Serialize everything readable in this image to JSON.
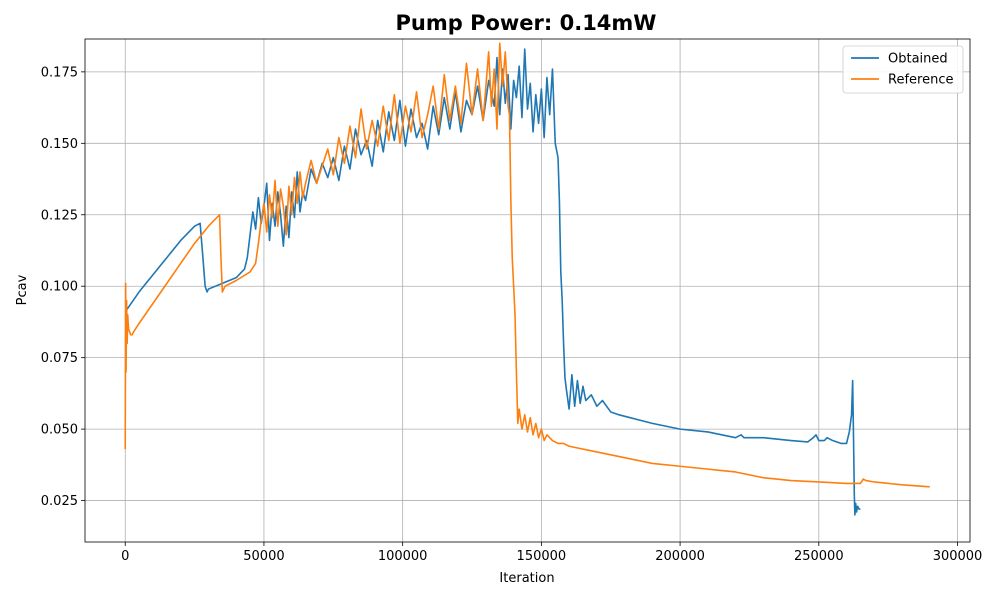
{
  "chart_data": {
    "type": "line",
    "title": "Pump Power: 0.14mW",
    "xlabel": "Iteration",
    "ylabel": "Pcav",
    "xlim": [
      -14500,
      304500
    ],
    "ylim": [
      0.0105,
      0.1865
    ],
    "xticks": [
      0,
      50000,
      100000,
      150000,
      200000,
      250000,
      300000
    ],
    "xtick_labels": [
      "0",
      "50000",
      "100000",
      "150000",
      "200000",
      "250000",
      "300000"
    ],
    "yticks": [
      0.025,
      0.05,
      0.075,
      0.1,
      0.125,
      0.15,
      0.175
    ],
    "ytick_labels": [
      "0.025",
      "0.050",
      "0.075",
      "0.100",
      "0.125",
      "0.150",
      "0.175"
    ],
    "grid": true,
    "legend_position": "upper right",
    "series": [
      {
        "name": "Obtained",
        "color": "#1f77b4",
        "x": [
          0,
          5000,
          10000,
          15000,
          20000,
          25000,
          27000,
          28000,
          28800,
          29500,
          30000,
          35000,
          40000,
          43000,
          44000,
          45000,
          46000,
          47000,
          48000,
          49000,
          50000,
          51000,
          52000,
          53000,
          54000,
          55000,
          56000,
          57000,
          58000,
          59000,
          60000,
          61000,
          62000,
          63000,
          64000,
          65000,
          67000,
          69000,
          71000,
          73000,
          75000,
          77000,
          79000,
          81000,
          83000,
          85000,
          87000,
          89000,
          91000,
          93000,
          95000,
          97000,
          99000,
          101000,
          103000,
          105000,
          107000,
          109000,
          111000,
          113000,
          115000,
          117000,
          119000,
          121000,
          123000,
          125000,
          127000,
          129000,
          131000,
          133000,
          134000,
          135000,
          136000,
          137000,
          138000,
          139000,
          140000,
          141000,
          142000,
          143000,
          144000,
          145000,
          146000,
          147000,
          148000,
          149000,
          150000,
          151000,
          152000,
          153000,
          154000,
          155000,
          156000,
          156500,
          157000,
          157500,
          158000,
          158500,
          159000,
          160000,
          161000,
          162000,
          163000,
          164000,
          165000,
          166000,
          168000,
          170000,
          172000,
          175000,
          178000,
          182000,
          190000,
          200000,
          210000,
          220000,
          222000,
          223000,
          230000,
          240000,
          246000,
          248000,
          249000,
          250000,
          252000,
          253000,
          255000,
          258000,
          260000,
          261000,
          261800,
          262200,
          262500,
          262800,
          263000,
          263300,
          263600,
          264000,
          264500,
          265000
        ],
        "y": [
          0.091,
          0.098,
          0.104,
          0.11,
          0.116,
          0.121,
          0.122,
          0.11,
          0.1,
          0.098,
          0.099,
          0.101,
          0.103,
          0.106,
          0.11,
          0.118,
          0.126,
          0.12,
          0.131,
          0.122,
          0.128,
          0.136,
          0.116,
          0.129,
          0.121,
          0.133,
          0.125,
          0.114,
          0.128,
          0.117,
          0.133,
          0.124,
          0.14,
          0.126,
          0.133,
          0.13,
          0.141,
          0.136,
          0.143,
          0.138,
          0.145,
          0.137,
          0.149,
          0.141,
          0.155,
          0.146,
          0.151,
          0.142,
          0.158,
          0.147,
          0.161,
          0.151,
          0.165,
          0.149,
          0.162,
          0.152,
          0.157,
          0.148,
          0.163,
          0.153,
          0.166,
          0.155,
          0.168,
          0.154,
          0.165,
          0.16,
          0.17,
          0.158,
          0.172,
          0.163,
          0.18,
          0.16,
          0.176,
          0.164,
          0.174,
          0.155,
          0.172,
          0.166,
          0.177,
          0.159,
          0.183,
          0.162,
          0.171,
          0.154,
          0.167,
          0.157,
          0.169,
          0.152,
          0.173,
          0.16,
          0.176,
          0.15,
          0.145,
          0.13,
          0.105,
          0.095,
          0.08,
          0.068,
          0.064,
          0.057,
          0.069,
          0.058,
          0.067,
          0.059,
          0.065,
          0.06,
          0.062,
          0.058,
          0.06,
          0.056,
          0.055,
          0.054,
          0.052,
          0.05,
          0.049,
          0.047,
          0.048,
          0.047,
          0.047,
          0.046,
          0.0455,
          0.047,
          0.048,
          0.046,
          0.046,
          0.047,
          0.046,
          0.045,
          0.045,
          0.049,
          0.055,
          0.067,
          0.048,
          0.027,
          0.02,
          0.024,
          0.021,
          0.023,
          0.022,
          0.022
        ]
      },
      {
        "name": "Reference",
        "color": "#ff7f0e",
        "x": [
          0,
          150,
          300,
          500,
          700,
          900,
          1200,
          1600,
          2000,
          2500,
          3000,
          5000,
          10000,
          15000,
          20000,
          25000,
          30000,
          33000,
          34000,
          34500,
          35000,
          36000,
          40000,
          45000,
          47000,
          48000,
          49000,
          50000,
          51000,
          52000,
          53000,
          54000,
          55000,
          56000,
          57000,
          58000,
          59000,
          60000,
          61000,
          62000,
          63000,
          64000,
          65000,
          67000,
          69000,
          71000,
          73000,
          75000,
          77000,
          79000,
          81000,
          83000,
          85000,
          87000,
          89000,
          91000,
          93000,
          95000,
          97000,
          99000,
          101000,
          103000,
          105000,
          107000,
          109000,
          111000,
          113000,
          115000,
          117000,
          119000,
          121000,
          123000,
          125000,
          127000,
          129000,
          131000,
          132000,
          133000,
          134000,
          135000,
          136000,
          137000,
          138000,
          138500,
          139000,
          139500,
          140000,
          140500,
          141000,
          141500,
          142000,
          143000,
          144000,
          145000,
          146000,
          147000,
          148000,
          149000,
          150000,
          151000,
          152000,
          154000,
          156000,
          158000,
          160000,
          170000,
          180000,
          190000,
          200000,
          210000,
          215000,
          220000,
          230000,
          240000,
          250000,
          260000,
          265000,
          266000,
          267000,
          270000,
          280000,
          290000
        ],
        "y": [
          0.043,
          0.101,
          0.07,
          0.095,
          0.08,
          0.09,
          0.085,
          0.084,
          0.083,
          0.083,
          0.084,
          0.087,
          0.094,
          0.101,
          0.108,
          0.115,
          0.121,
          0.124,
          0.125,
          0.11,
          0.098,
          0.1,
          0.102,
          0.105,
          0.108,
          0.115,
          0.123,
          0.129,
          0.119,
          0.132,
          0.124,
          0.137,
          0.121,
          0.134,
          0.128,
          0.118,
          0.135,
          0.125,
          0.138,
          0.129,
          0.14,
          0.131,
          0.136,
          0.144,
          0.136,
          0.142,
          0.148,
          0.139,
          0.152,
          0.143,
          0.156,
          0.145,
          0.162,
          0.148,
          0.158,
          0.149,
          0.163,
          0.151,
          0.167,
          0.15,
          0.163,
          0.154,
          0.168,
          0.152,
          0.16,
          0.17,
          0.155,
          0.174,
          0.158,
          0.17,
          0.157,
          0.178,
          0.16,
          0.176,
          0.158,
          0.182,
          0.163,
          0.176,
          0.155,
          0.185,
          0.17,
          0.182,
          0.163,
          0.16,
          0.13,
          0.11,
          0.1,
          0.09,
          0.07,
          0.052,
          0.057,
          0.05,
          0.055,
          0.049,
          0.054,
          0.048,
          0.052,
          0.047,
          0.05,
          0.046,
          0.048,
          0.046,
          0.045,
          0.045,
          0.044,
          0.042,
          0.04,
          0.038,
          0.037,
          0.036,
          0.0355,
          0.035,
          0.033,
          0.032,
          0.0315,
          0.031,
          0.031,
          0.0325,
          0.032,
          0.0315,
          0.0305,
          0.0298
        ]
      }
    ]
  }
}
